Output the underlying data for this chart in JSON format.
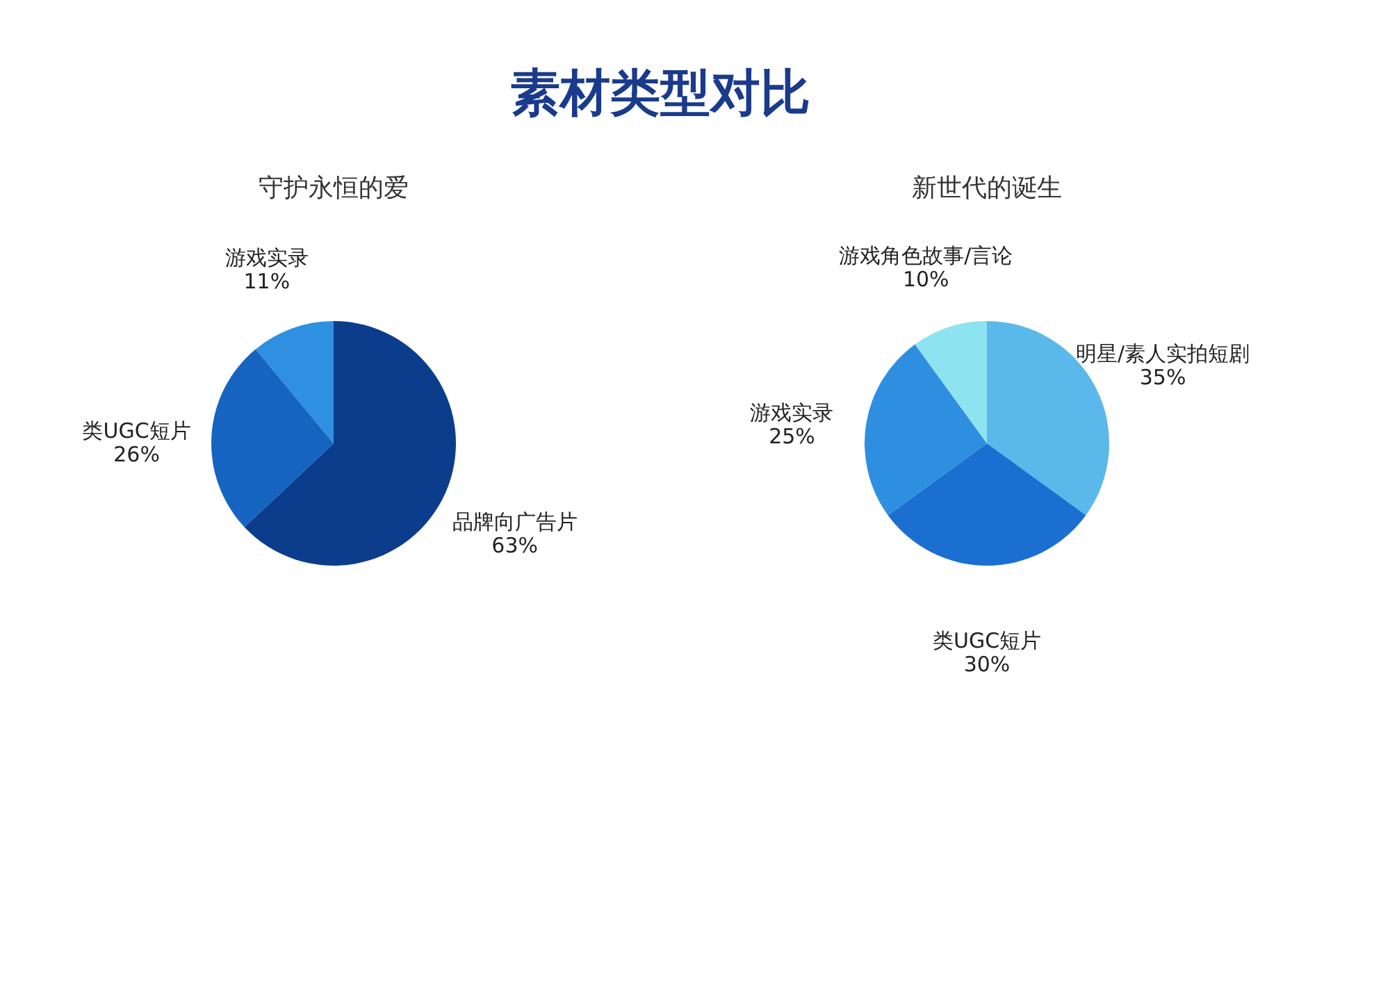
{
  "chart_data": [
    {
      "type": "pie",
      "title": "素材类型对比",
      "subtitle": "守护永恒的爱",
      "categories": [
        "品牌向广告片",
        "类UGC短片",
        "游戏实录"
      ],
      "values": [
        63,
        26,
        11
      ],
      "value_labels": [
        "63%",
        "26%",
        "11%"
      ],
      "colors": [
        "#0b3d8c",
        "#1565c0",
        "#2f8fe0"
      ]
    },
    {
      "type": "pie",
      "subtitle": "新世代的诞生",
      "categories": [
        "明星/素人实拍短剧",
        "类UGC短片",
        "游戏实录",
        "游戏角色故事/言论"
      ],
      "values": [
        35,
        30,
        25,
        10
      ],
      "value_labels": [
        "35%",
        "30%",
        "25%",
        "10%"
      ],
      "colors": [
        "#5bb8ea",
        "#1a6fd0",
        "#2e8fe0",
        "#8de3ef"
      ]
    }
  ]
}
